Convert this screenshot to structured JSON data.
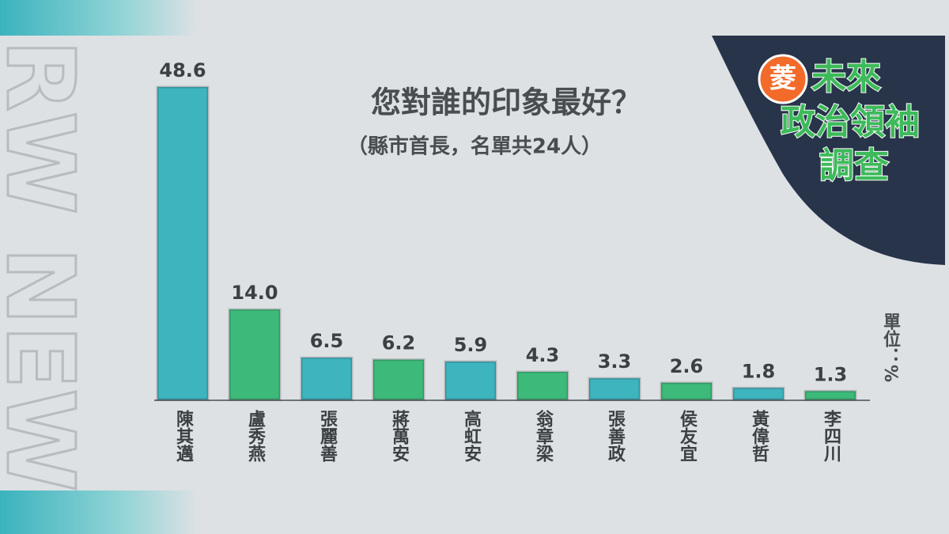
{
  "chart_data": {
    "type": "bar",
    "title": "您對誰的印象最好？",
    "subtitle": "（縣市首長，名單共24人）",
    "unit_label": "單位：%",
    "categories": [
      "陳其邁",
      "盧秀燕",
      "張麗善",
      "蔣萬安",
      "高虹安",
      "翁章梁",
      "張善政",
      "侯友宜",
      "黃偉哲",
      "李四川"
    ],
    "values": [
      48.6,
      14.0,
      6.5,
      6.2,
      5.9,
      4.3,
      3.3,
      2.6,
      1.8,
      1.3
    ],
    "value_labels": [
      "48.6",
      "14.0",
      "6.5",
      "6.2",
      "5.9",
      "4.3",
      "3.3",
      "2.6",
      "1.8",
      "1.3"
    ],
    "colors": [
      "#3eb4bf",
      "#3dba7a",
      "#3eb4bf",
      "#3dba7a",
      "#3eb4bf",
      "#3dba7a",
      "#3eb4bf",
      "#3dba7a",
      "#3eb4bf",
      "#3dba7a"
    ]
  },
  "badge": {
    "mark": "菱",
    "line1": "未來",
    "line2": "政治領袖",
    "line3": "調查"
  },
  "watermark": "RW NEW"
}
